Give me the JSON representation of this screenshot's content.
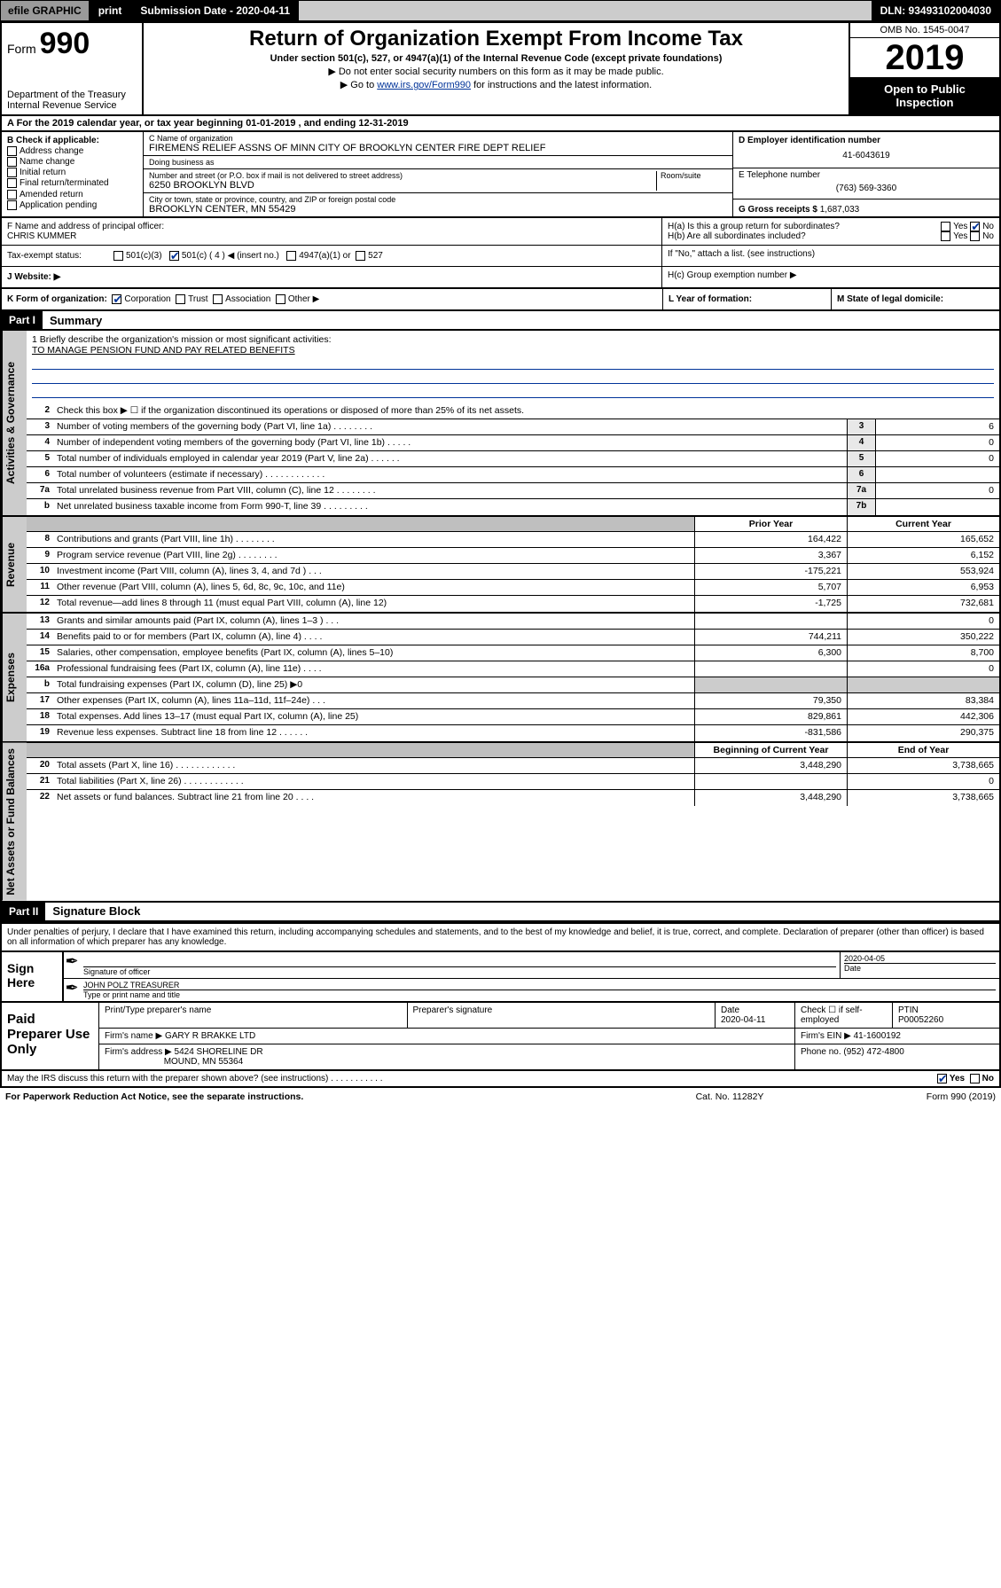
{
  "topbar": {
    "efile": "efile GRAPHIC",
    "print": "print",
    "subdate_lbl": "Submission Date - 2020-04-11",
    "dln": "DLN: 93493102004030"
  },
  "hdr": {
    "form_word": "Form",
    "form_num": "990",
    "dept": "Department of the Treasury\nInternal Revenue Service",
    "title": "Return of Organization Exempt From Income Tax",
    "sub": "Under section 501(c), 527, or 4947(a)(1) of the Internal Revenue Code (except private foundations)",
    "note1": "▶ Do not enter social security numbers on this form as it may be made public.",
    "note2_pre": "▶ Go to ",
    "note2_link": "www.irs.gov/Form990",
    "note2_post": " for instructions and the latest information.",
    "omb": "OMB No. 1545-0047",
    "year": "2019",
    "open": "Open to Public Inspection"
  },
  "row_a": "A For the 2019 calendar year, or tax year beginning 01-01-2019    , and ending 12-31-2019",
  "box_b": {
    "label": "B Check if applicable:",
    "items": [
      "Address change",
      "Name change",
      "Initial return",
      "Final return/terminated",
      "Amended return",
      "Application pending"
    ]
  },
  "box_c": {
    "name_lbl": "C Name of organization",
    "name": "FIREMENS RELIEF ASSNS OF MINN CITY OF BROOKLYN CENTER FIRE DEPT RELIEF",
    "dba_lbl": "Doing business as",
    "dba": "",
    "addr_lbl": "Number and street (or P.O. box if mail is not delivered to street address)",
    "room_lbl": "Room/suite",
    "addr": "6250 BROOKLYN BLVD",
    "city_lbl": "City or town, state or province, country, and ZIP or foreign postal code",
    "city": "BROOKLYN CENTER, MN  55429"
  },
  "box_d": {
    "ein_lbl": "D Employer identification number",
    "ein": "41-6043619",
    "tel_lbl": "E Telephone number",
    "tel": "(763) 569-3360",
    "gross_lbl": "G Gross receipts $ ",
    "gross": "1,687,033"
  },
  "box_f": {
    "lbl": "F  Name and address of principal officer:",
    "name": "CHRIS KUMMER"
  },
  "box_h": {
    "a": "H(a)  Is this a group return for subordinates?",
    "b": "H(b)  Are all subordinates included?",
    "b_note": "If \"No,\" attach a list. (see instructions)",
    "c": "H(c)  Group exemption number ▶",
    "yes": "Yes",
    "no": "No"
  },
  "tax": {
    "lbl": "Tax-exempt status:",
    "o1": "501(c)(3)",
    "o2": "501(c) ( 4 ) ◀ (insert no.)",
    "o3": "4947(a)(1) or",
    "o4": "527"
  },
  "row_j": {
    "lbl": "J   Website: ▶"
  },
  "row_k": {
    "k": "K Form of organization:",
    "k_opts": [
      "Corporation",
      "Trust",
      "Association",
      "Other ▶"
    ],
    "l": "L Year of formation:",
    "m": "M State of legal domicile:"
  },
  "part1": {
    "tag": "Part I",
    "title": "Summary"
  },
  "side_labels": {
    "gov": "Activities & Governance",
    "rev": "Revenue",
    "exp": "Expenses",
    "net": "Net Assets or Fund Balances"
  },
  "mission": {
    "q": "1  Briefly describe the organization's mission or most significant activities:",
    "a": "TO MANAGE PENSION FUND AND PAY RELATED BENEFITS"
  },
  "gov_lines": [
    {
      "n": "2",
      "d": "Check this box ▶ ☐  if the organization discontinued its operations or disposed of more than 25% of its net assets.",
      "c": "",
      "v": ""
    },
    {
      "n": "3",
      "d": "Number of voting members of the governing body (Part VI, line 1a)   .    .    .    .    .    .    .    .",
      "c": "3",
      "v": "6"
    },
    {
      "n": "4",
      "d": "Number of independent voting members of the governing body (Part VI, line 1b)   .    .    .    .    .",
      "c": "4",
      "v": "0"
    },
    {
      "n": "5",
      "d": "Total number of individuals employed in calendar year 2019 (Part V, line 2a)   .    .    .    .    .    .",
      "c": "5",
      "v": "0"
    },
    {
      "n": "6",
      "d": "Total number of volunteers (estimate if necessary)   .    .    .    .    .    .    .    .    .    .    .    .",
      "c": "6",
      "v": ""
    },
    {
      "n": "7a",
      "d": "Total unrelated business revenue from Part VIII, column (C), line 12   .    .    .    .    .    .    .    .",
      "c": "7a",
      "v": "0"
    },
    {
      "n": "b",
      "d": "Net unrelated business taxable income from Form 990-T, line 39   .    .    .    .    .    .    .    .    .",
      "c": "7b",
      "v": ""
    }
  ],
  "cols": {
    "prior": "Prior Year",
    "current": "Current Year",
    "boy": "Beginning of Current Year",
    "eoy": "End of Year"
  },
  "rev_lines": [
    {
      "n": "8",
      "d": "Contributions and grants (Part VIII, line 1h)   .    .    .    .    .    .    .    .",
      "p": "164,422",
      "c": "165,652"
    },
    {
      "n": "9",
      "d": "Program service revenue (Part VIII, line 2g)   .    .    .    .    .    .    .    .",
      "p": "3,367",
      "c": "6,152"
    },
    {
      "n": "10",
      "d": "Investment income (Part VIII, column (A), lines 3, 4, and 7d )   .    .    .",
      "p": "-175,221",
      "c": "553,924"
    },
    {
      "n": "11",
      "d": "Other revenue (Part VIII, column (A), lines 5, 6d, 8c, 9c, 10c, and 11e)",
      "p": "5,707",
      "c": "6,953"
    },
    {
      "n": "12",
      "d": "Total revenue—add lines 8 through 11 (must equal Part VIII, column (A), line 12)",
      "p": "-1,725",
      "c": "732,681"
    }
  ],
  "exp_lines": [
    {
      "n": "13",
      "d": "Grants and similar amounts paid (Part IX, column (A), lines 1–3 )   .    .    .",
      "p": "",
      "c": "0"
    },
    {
      "n": "14",
      "d": "Benefits paid to or for members (Part IX, column (A), line 4)   .    .    .    .",
      "p": "744,211",
      "c": "350,222"
    },
    {
      "n": "15",
      "d": "Salaries, other compensation, employee benefits (Part IX, column (A), lines 5–10)",
      "p": "6,300",
      "c": "8,700"
    },
    {
      "n": "16a",
      "d": "Professional fundraising fees (Part IX, column (A), line 11e)   .    .    .    .",
      "p": "",
      "c": "0"
    },
    {
      "n": "b",
      "d": "Total fundraising expenses (Part IX, column (D), line 25) ▶0",
      "p": "gray",
      "c": "gray"
    },
    {
      "n": "17",
      "d": "Other expenses (Part IX, column (A), lines 11a–11d, 11f–24e)   .    .    .",
      "p": "79,350",
      "c": "83,384"
    },
    {
      "n": "18",
      "d": "Total expenses. Add lines 13–17 (must equal Part IX, column (A), line 25)",
      "p": "829,861",
      "c": "442,306"
    },
    {
      "n": "19",
      "d": "Revenue less expenses. Subtract line 18 from line 12   .    .    .    .    .    .",
      "p": "-831,586",
      "c": "290,375"
    }
  ],
  "net_lines": [
    {
      "n": "20",
      "d": "Total assets (Part X, line 16)   .    .    .    .    .    .    .    .    .    .    .    .",
      "p": "3,448,290",
      "c": "3,738,665"
    },
    {
      "n": "21",
      "d": "Total liabilities (Part X, line 26)   .    .    .    .    .    .    .    .    .    .    .    .",
      "p": "",
      "c": "0"
    },
    {
      "n": "22",
      "d": "Net assets or fund balances. Subtract line 21 from line 20   .    .    .    .",
      "p": "3,448,290",
      "c": "3,738,665"
    }
  ],
  "part2": {
    "tag": "Part II",
    "title": "Signature Block"
  },
  "sig": {
    "note": "Under penalties of perjury, I declare that I have examined this return, including accompanying schedules and statements, and to the best of my knowledge and belief, it is true, correct, and complete. Declaration of preparer (other than officer) is based on all information of which preparer has any knowledge.",
    "here": "Sign Here",
    "sig_lbl": "Signature of officer",
    "date_lbl": "Date",
    "date": "2020-04-05",
    "name": "JOHN POLZ  TREASURER",
    "name_lbl": "Type or print name and title"
  },
  "paid": {
    "title": "Paid Preparer Use Only",
    "h1": "Print/Type preparer's name",
    "h2": "Preparer's signature",
    "h3": "Date",
    "h3v": "2020-04-11",
    "h4": "Check ☐ if self-employed",
    "h5": "PTIN",
    "h5v": "P00052260",
    "firm_lbl": "Firm's name    ▶",
    "firm": "GARY R BRAKKE LTD",
    "ein_lbl": "Firm's EIN ▶",
    "ein": "41-1600192",
    "addr_lbl": "Firm's address ▶",
    "addr1": "5424 SHORELINE DR",
    "addr2": "MOUND, MN  55364",
    "phone_lbl": "Phone no.",
    "phone": "(952) 472-4800"
  },
  "footer": {
    "q": "May the IRS discuss this return with the preparer shown above? (see instructions)   .    .    .    .    .    .    .    .    .    .    .",
    "yes": "Yes",
    "no": "No"
  },
  "bottom": {
    "l": "For Paperwork Reduction Act Notice, see the separate instructions.",
    "c": "Cat. No. 11282Y",
    "r": "Form 990 (2019)"
  }
}
